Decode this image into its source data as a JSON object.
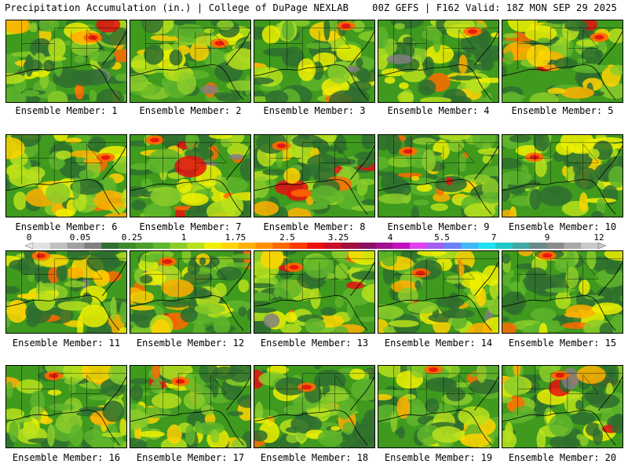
{
  "header": {
    "title_left": "Precipitation Accumulation (in.) | College of DuPage NEXLAB",
    "title_right": "00Z GEFS | F162 Valid: 18Z MON SEP 29 2025"
  },
  "colorbar": {
    "tick_labels": [
      "0",
      "0.05",
      "0.25",
      "1",
      "1.75",
      "2.5",
      "3.25",
      "4",
      "5.5",
      "7",
      "9",
      "12"
    ],
    "colors": [
      "#e0e0e0",
      "#c0c0c0",
      "#a0a0a0",
      "#808080",
      "#2f6f2f",
      "#3d8a2c",
      "#4a9e2a",
      "#5fb52c",
      "#8ccc2a",
      "#b8e01c",
      "#eef000",
      "#ffd400",
      "#ffb000",
      "#ff9000",
      "#ff6a00",
      "#ff3a00",
      "#e81010",
      "#c8102a",
      "#a0103a",
      "#8a1060",
      "#a01090",
      "#c010c0",
      "#e040f0",
      "#a060f0",
      "#6c80f8",
      "#40b8f8",
      "#20e0f0",
      "#20c8c8",
      "#40a8a0",
      "#6a8a8a",
      "#8a8a8a",
      "#a8a8a8",
      "#c8c8c8"
    ]
  },
  "panels": [
    {
      "label": "Ensemble Member: 1"
    },
    {
      "label": "Ensemble Member: 2"
    },
    {
      "label": "Ensemble Member: 3"
    },
    {
      "label": "Ensemble Member: 4"
    },
    {
      "label": "Ensemble Member: 5"
    },
    {
      "label": "Ensemble Member: 6"
    },
    {
      "label": "Ensemble Member: 7"
    },
    {
      "label": "Ensemble Member: 8"
    },
    {
      "label": "Ensemble Member: 9"
    },
    {
      "label": "Ensemble Member: 10"
    },
    {
      "label": "Ensemble Member: 11"
    },
    {
      "label": "Ensemble Member: 12"
    },
    {
      "label": "Ensemble Member: 13"
    },
    {
      "label": "Ensemble Member: 14"
    },
    {
      "label": "Ensemble Member: 15"
    },
    {
      "label": "Ensemble Member: 16"
    },
    {
      "label": "Ensemble Member: 17"
    },
    {
      "label": "Ensemble Member: 18"
    },
    {
      "label": "Ensemble Member: 19"
    },
    {
      "label": "Ensemble Member: 20"
    }
  ]
}
